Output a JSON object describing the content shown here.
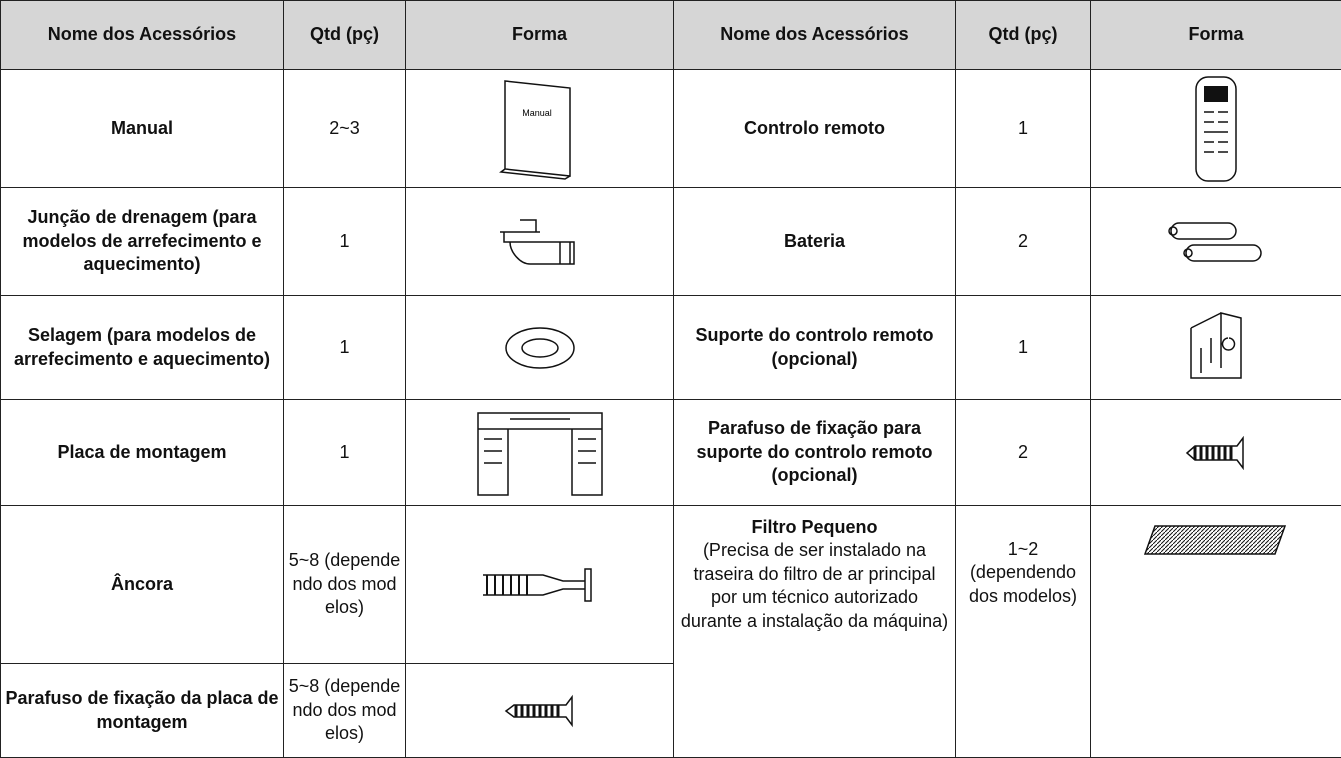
{
  "table": {
    "header": [
      "Nome dos Acessórios",
      "Qtd (pç)",
      "Forma",
      "Nome dos Acessórios",
      "Qtd (pç)",
      "Forma"
    ],
    "left": [
      [
        "Manual",
        "2~3"
      ],
      [
        "Junção de drenagem (para modelos de arrefecimento e aquecimento)",
        "1"
      ],
      [
        "Selagem (para modelos de arrefecimento e aquecimento)",
        "1"
      ],
      [
        "Placa de montagem",
        "1"
      ],
      [
        "Âncora",
        "5~8 (dependendo dos modelos)"
      ],
      [
        "Parafuso de fixação da placa de montagem",
        "5~8 (dependendo dos modelos)"
      ]
    ],
    "right": [
      [
        "Controlo remoto",
        "1"
      ],
      [
        "Bateria",
        "2"
      ],
      [
        "Suporte do controlo remoto (opcional)",
        "1"
      ],
      [
        "Parafuso de fixação para suporte do controlo remoto (opcional)",
        "2"
      ],
      [
        "Filtro Pequeno",
        "(Precisa de ser instalado na traseira do filtro de ar principal por um técnico autorizado durante a instalação da máquina)",
        "1~2 (dependendo dos modelos)"
      ]
    ],
    "manual_icon_label": "Manual"
  }
}
